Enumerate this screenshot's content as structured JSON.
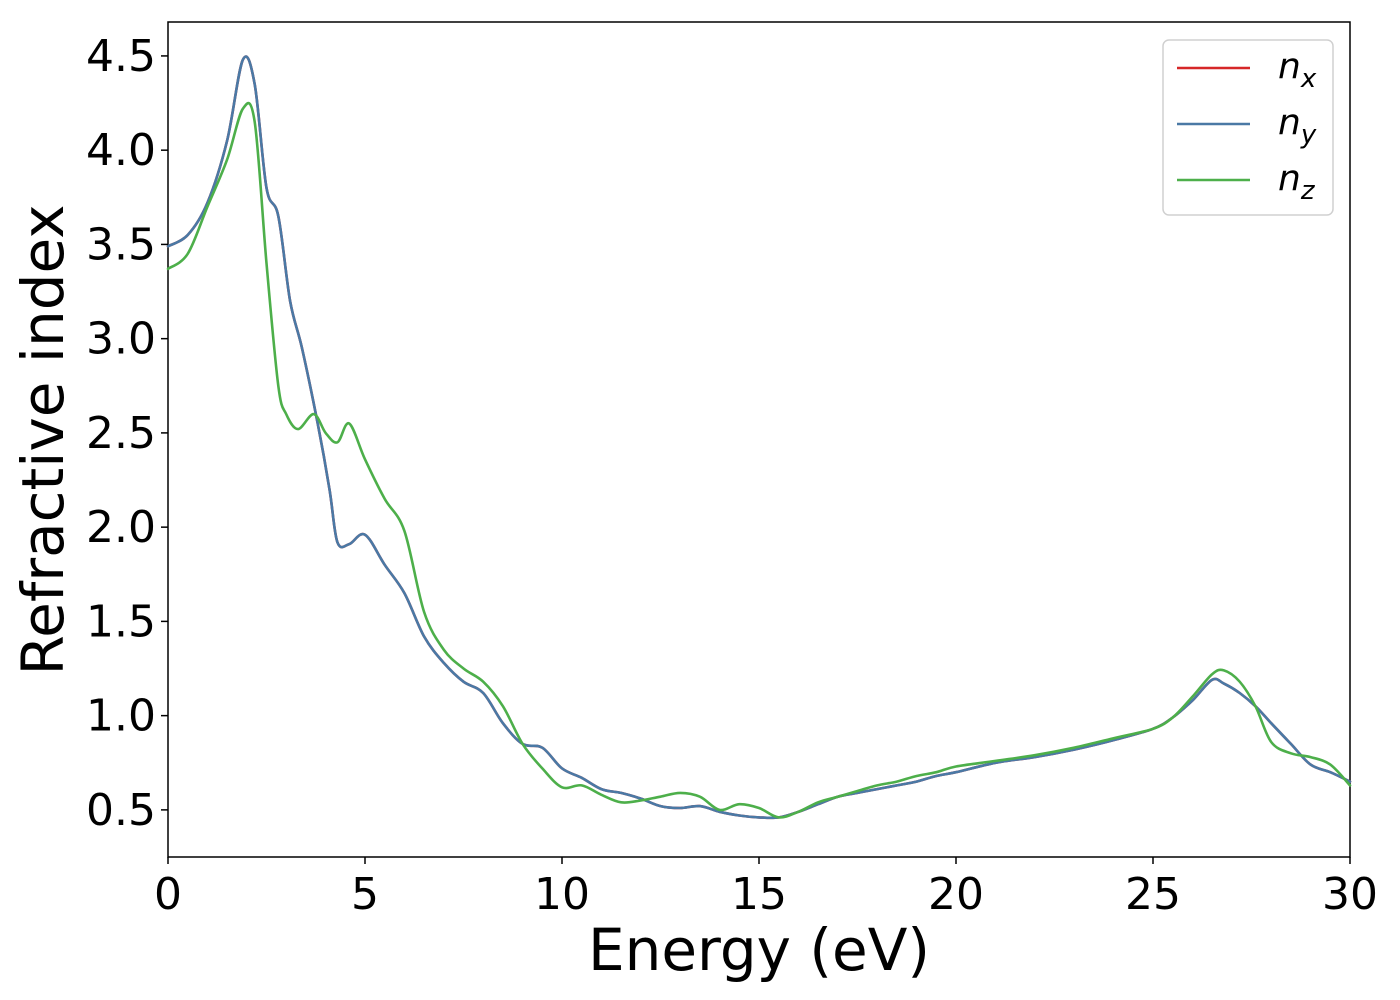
{
  "chart_data": {
    "type": "line",
    "xlabel": "Energy (eV)",
    "ylabel": "Refractive index",
    "xlim": [
      0,
      30
    ],
    "ylim": [
      0.25,
      4.68
    ],
    "xticks": [
      0,
      5,
      10,
      15,
      20,
      25,
      30
    ],
    "xtick_labels": [
      "0",
      "5",
      "10",
      "15",
      "20",
      "25",
      "30"
    ],
    "yticks": [
      0.5,
      1.0,
      1.5,
      2.0,
      2.5,
      3.0,
      3.5,
      4.0,
      4.5
    ],
    "ytick_labels": [
      "0.5",
      "1.0",
      "1.5",
      "2.0",
      "2.5",
      "3.0",
      "3.5",
      "4.0",
      "4.5"
    ],
    "grid": false,
    "legend_position": "top-right",
    "series": [
      {
        "name": "n",
        "subscript": "x",
        "color": "#d62728",
        "x": [
          0,
          0.5,
          1,
          1.5,
          1.9,
          2.2,
          2.5,
          2.8,
          3.1,
          3.4,
          3.8,
          4.1,
          4.3,
          4.6,
          5.0,
          5.5,
          6.0,
          6.5,
          7.0,
          7.5,
          8.0,
          8.5,
          9.0,
          9.5,
          10.0,
          10.5,
          11.0,
          11.5,
          12.0,
          12.5,
          13.0,
          13.5,
          14.0,
          14.5,
          15.0,
          15.5,
          16.0,
          16.5,
          17.0,
          17.5,
          18.0,
          18.5,
          19.0,
          19.5,
          20.0,
          21.0,
          22.0,
          23.0,
          24.0,
          25.0,
          25.5,
          26.0,
          26.5,
          26.8,
          27.2,
          27.6,
          28.0,
          28.5,
          29.0,
          29.5,
          30.0
        ],
        "y": [
          3.49,
          3.55,
          3.72,
          4.05,
          4.48,
          4.35,
          3.8,
          3.65,
          3.2,
          2.95,
          2.55,
          2.2,
          1.92,
          1.91,
          1.96,
          1.8,
          1.65,
          1.42,
          1.28,
          1.18,
          1.12,
          0.96,
          0.85,
          0.83,
          0.72,
          0.67,
          0.61,
          0.59,
          0.56,
          0.52,
          0.51,
          0.52,
          0.49,
          0.47,
          0.46,
          0.46,
          0.49,
          0.53,
          0.57,
          0.59,
          0.61,
          0.63,
          0.65,
          0.68,
          0.7,
          0.75,
          0.78,
          0.82,
          0.87,
          0.93,
          0.99,
          1.08,
          1.19,
          1.17,
          1.12,
          1.05,
          0.96,
          0.85,
          0.74,
          0.7,
          0.65
        ]
      },
      {
        "name": "n",
        "subscript": "y",
        "color": "#4a79a5",
        "x": [
          0,
          0.5,
          1,
          1.5,
          1.9,
          2.2,
          2.5,
          2.8,
          3.1,
          3.4,
          3.8,
          4.1,
          4.3,
          4.6,
          5.0,
          5.5,
          6.0,
          6.5,
          7.0,
          7.5,
          8.0,
          8.5,
          9.0,
          9.5,
          10.0,
          10.5,
          11.0,
          11.5,
          12.0,
          12.5,
          13.0,
          13.5,
          14.0,
          14.5,
          15.0,
          15.5,
          16.0,
          16.5,
          17.0,
          17.5,
          18.0,
          18.5,
          19.0,
          19.5,
          20.0,
          21.0,
          22.0,
          23.0,
          24.0,
          25.0,
          25.5,
          26.0,
          26.5,
          26.8,
          27.2,
          27.6,
          28.0,
          28.5,
          29.0,
          29.5,
          30.0
        ],
        "y": [
          3.49,
          3.55,
          3.72,
          4.05,
          4.48,
          4.35,
          3.8,
          3.65,
          3.2,
          2.95,
          2.55,
          2.2,
          1.92,
          1.91,
          1.96,
          1.8,
          1.65,
          1.42,
          1.28,
          1.18,
          1.12,
          0.96,
          0.85,
          0.83,
          0.72,
          0.67,
          0.61,
          0.59,
          0.56,
          0.52,
          0.51,
          0.52,
          0.49,
          0.47,
          0.46,
          0.46,
          0.49,
          0.53,
          0.57,
          0.59,
          0.61,
          0.63,
          0.65,
          0.68,
          0.7,
          0.75,
          0.78,
          0.82,
          0.87,
          0.93,
          0.99,
          1.08,
          1.19,
          1.17,
          1.12,
          1.05,
          0.96,
          0.85,
          0.74,
          0.7,
          0.65
        ]
      },
      {
        "name": "n",
        "subscript": "z",
        "color": "#4daf4a",
        "x": [
          0,
          0.5,
          1,
          1.5,
          1.9,
          2.2,
          2.5,
          2.8,
          3.0,
          3.3,
          3.7,
          4.0,
          4.3,
          4.6,
          5.0,
          5.5,
          6.0,
          6.5,
          7.0,
          7.5,
          8.0,
          8.5,
          9.0,
          9.5,
          10.0,
          10.5,
          11.0,
          11.5,
          12.0,
          12.5,
          13.0,
          13.5,
          14.0,
          14.5,
          15.0,
          15.5,
          16.0,
          16.5,
          17.0,
          17.5,
          18.0,
          18.5,
          19.0,
          19.5,
          20.0,
          21.0,
          22.0,
          23.0,
          24.0,
          25.0,
          25.5,
          26.0,
          26.5,
          26.8,
          27.2,
          27.6,
          28.0,
          28.5,
          29.0,
          29.5,
          30.0
        ],
        "y": [
          3.37,
          3.45,
          3.7,
          3.95,
          4.22,
          4.15,
          3.4,
          2.75,
          2.6,
          2.52,
          2.6,
          2.5,
          2.45,
          2.55,
          2.36,
          2.15,
          1.98,
          1.55,
          1.35,
          1.25,
          1.18,
          1.05,
          0.85,
          0.72,
          0.62,
          0.63,
          0.58,
          0.54,
          0.55,
          0.57,
          0.59,
          0.57,
          0.5,
          0.53,
          0.51,
          0.46,
          0.49,
          0.54,
          0.57,
          0.6,
          0.63,
          0.65,
          0.68,
          0.7,
          0.73,
          0.76,
          0.79,
          0.83,
          0.88,
          0.93,
          0.99,
          1.1,
          1.22,
          1.24,
          1.18,
          1.05,
          0.86,
          0.8,
          0.78,
          0.74,
          0.63
        ]
      }
    ]
  }
}
